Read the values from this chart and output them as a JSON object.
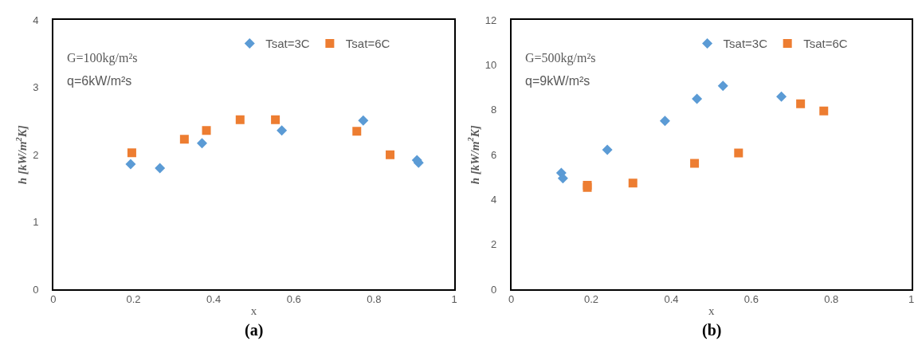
{
  "chart_data": [
    {
      "type": "scatter",
      "xlabel": "x",
      "ylabel": "h [kW/m$^{2}$K]",
      "xlim": [
        0,
        1
      ],
      "xticks": [
        0,
        0.2,
        0.4,
        0.6,
        0.8,
        1
      ],
      "ylim": [
        0,
        4
      ],
      "yticks": [
        0,
        1,
        2,
        3,
        4
      ],
      "legend": "top right",
      "annotations": [
        "G=100kg/m²s",
        "q=6kW/m²s",
        "(a)"
      ],
      "series": [
        {
          "name": "Tsat=3C",
          "color": "#5b9bd5",
          "marker": "diamond",
          "x": [
            0.193,
            0.266,
            0.371,
            0.57,
            0.773,
            0.907,
            0.911
          ],
          "values": [
            1.86,
            1.8,
            2.17,
            2.36,
            2.51,
            1.92,
            1.88
          ]
        },
        {
          "name": "Tsat=6C",
          "color": "#ed7d31",
          "marker": "square",
          "x": [
            0.196,
            0.327,
            0.382,
            0.466,
            0.554,
            0.757,
            0.84
          ],
          "values": [
            2.03,
            2.23,
            2.36,
            2.52,
            2.52,
            2.35,
            2.0
          ]
        }
      ]
    },
    {
      "type": "scatter",
      "xlabel": "x",
      "ylabel": "h [kW/m$^{2}$K]",
      "xlim": [
        0,
        1
      ],
      "xticks": [
        0,
        0.2,
        0.4,
        0.6,
        0.8,
        1
      ],
      "ylim": [
        0,
        12
      ],
      "yticks": [
        0,
        2,
        4,
        6,
        8,
        10,
        12
      ],
      "legend": "top right",
      "annotations": [
        "G=500kg/m²s",
        "q=9kW/m²s",
        "(b)"
      ],
      "series": [
        {
          "name": "Tsat=3C",
          "color": "#5b9bd5",
          "marker": "diamond",
          "x": [
            0.125,
            0.129,
            0.24,
            0.384,
            0.464,
            0.529,
            0.675
          ],
          "values": [
            5.19,
            4.95,
            6.22,
            7.51,
            8.49,
            9.07,
            8.59
          ]
        },
        {
          "name": "Tsat=6C",
          "color": "#ed7d31",
          "marker": "square",
          "x": [
            0.19,
            0.19,
            0.304,
            0.458,
            0.568,
            0.723,
            0.781
          ],
          "values": [
            4.64,
            4.54,
            4.74,
            5.62,
            6.08,
            8.27,
            7.95
          ]
        }
      ]
    }
  ]
}
